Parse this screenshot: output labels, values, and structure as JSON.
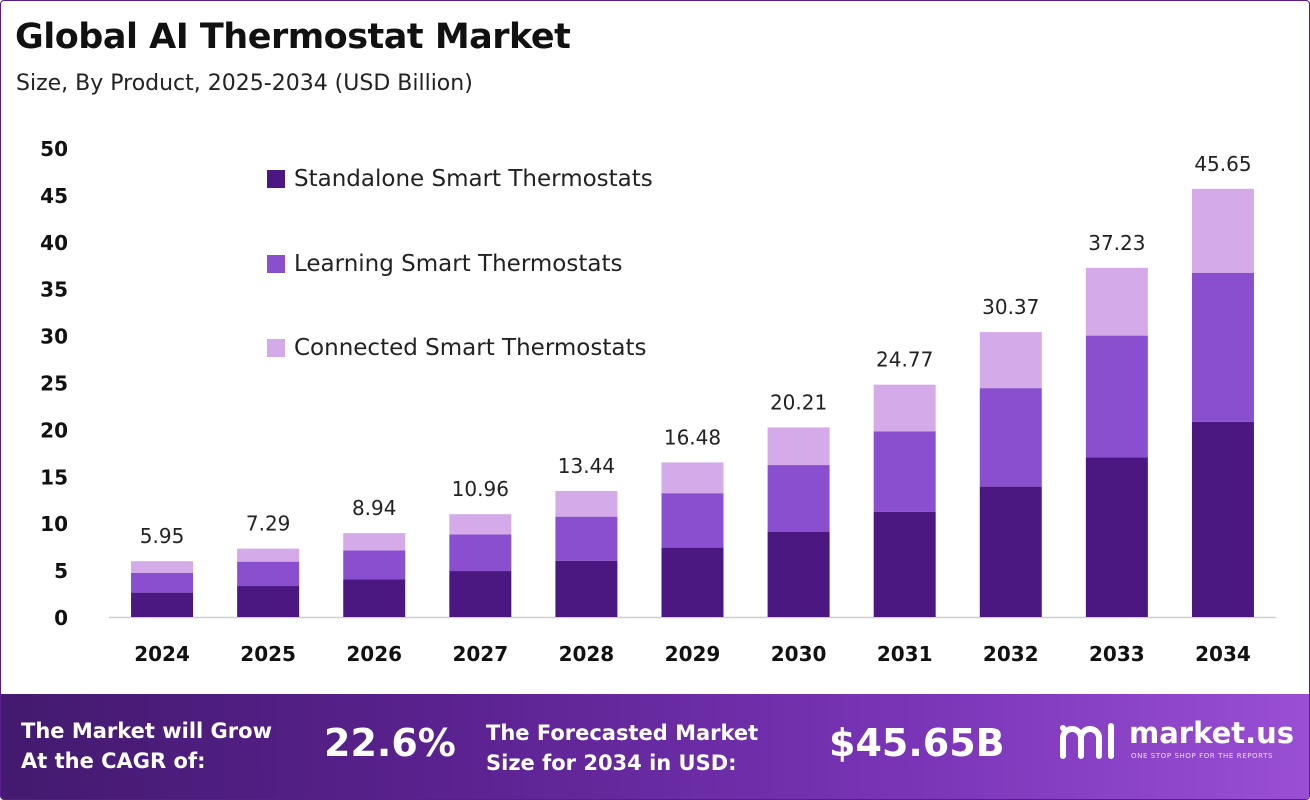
{
  "header": {
    "title": "Global AI Thermostat Market",
    "subtitle": "Size, By Product, 2025-2034 (USD Billion)"
  },
  "chart_data": {
    "type": "bar",
    "stacked": true,
    "categories": [
      "2024",
      "2025",
      "2026",
      "2027",
      "2028",
      "2029",
      "2030",
      "2031",
      "2032",
      "2033",
      "2034"
    ],
    "series": [
      {
        "name": "Standalone Smart Thermostats",
        "color": "#4a1880",
        "values": [
          2.6,
          3.3,
          4.0,
          4.9,
          6.0,
          7.4,
          9.1,
          11.2,
          13.9,
          17.0,
          20.8
        ]
      },
      {
        "name": "Learning Smart Thermostats",
        "color": "#8a4fcf",
        "values": [
          2.1,
          2.6,
          3.1,
          3.9,
          4.7,
          5.8,
          7.1,
          8.6,
          10.5,
          13.0,
          15.9
        ]
      },
      {
        "name": "Connected Smart Thermostats",
        "color": "#d4aae9",
        "values": [
          1.25,
          1.39,
          1.84,
          2.16,
          2.74,
          3.28,
          4.01,
          4.97,
          5.97,
          7.23,
          8.95
        ]
      }
    ],
    "totals": [
      "5.95",
      "7.29",
      "8.94",
      "10.96",
      "13.44",
      "16.48",
      "20.21",
      "24.77",
      "30.37",
      "37.23",
      "45.65"
    ],
    "ylim": [
      0,
      50
    ],
    "yticks": [
      0,
      5,
      10,
      15,
      20,
      25,
      30,
      35,
      40,
      45,
      50
    ],
    "grid": false,
    "legend_position": "top-left"
  },
  "footer": {
    "cagr_label_line1": "The Market will Grow",
    "cagr_label_line2": "At the CAGR of:",
    "cagr_value": "22.6%",
    "forecast_label_line1": "The Forecasted Market",
    "forecast_label_line2": "Size for 2034 in USD:",
    "forecast_value": "$45.65B",
    "logo_name": "market.us",
    "logo_tagline": "ONE STOP SHOP FOR THE REPORTS",
    "logo_icon": "market-us-logo-icon"
  }
}
